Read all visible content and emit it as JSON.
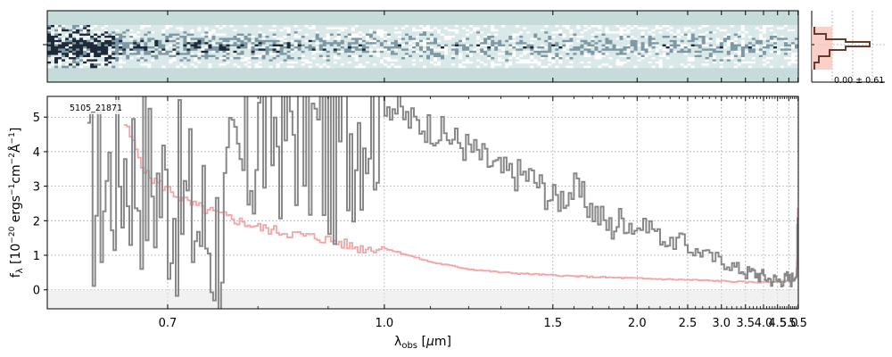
{
  "chart_data": {
    "type": "line",
    "object_id": "5105_21871",
    "xlabel": "λ_obs [μm]",
    "ylabel": "f_λ [10^−20 ergs^−1cm^−2Å^−1]",
    "x_scale": "reciprocal-like (dispersion axis)",
    "xlim": [
      0.6,
      5.52
    ],
    "ylim": [
      -0.55,
      5.6
    ],
    "x_ticks": [
      0.7,
      1.0,
      1.5,
      2.0,
      2.5,
      3.0,
      3.5,
      4.0,
      4.5,
      5.0,
      5.5
    ],
    "x_tick_labels": [
      "0.7",
      "1.0",
      "1.5",
      "2.0",
      "2.5",
      "3.0",
      "3.5",
      "4.0",
      "4.5",
      "5.0",
      "5.5"
    ],
    "y_ticks": [
      0,
      1,
      2,
      3,
      4,
      5
    ],
    "y_tick_labels": [
      "0",
      "1",
      "2",
      "3",
      "4",
      "5"
    ],
    "grid": true,
    "series": [
      {
        "color": "#888888",
        "style": "step",
        "x": [
          0.63,
          0.66,
          0.7,
          0.75,
          0.8,
          0.85,
          0.9,
          0.95,
          1.0,
          1.05,
          1.1,
          1.2,
          1.3,
          1.4,
          1.5,
          1.6,
          1.7,
          1.8,
          1.9,
          2.0,
          2.1,
          2.2,
          2.3,
          2.4,
          2.5,
          2.6,
          2.7,
          2.8,
          2.9,
          3.0,
          3.1,
          3.2,
          3.3,
          3.4,
          3.5,
          3.6,
          3.7,
          3.8,
          3.9,
          4.0,
          4.1,
          4.2,
          4.3,
          4.4,
          4.5,
          4.6,
          4.7,
          4.8,
          4.9,
          5.0,
          5.1,
          5.2,
          5.3,
          5.4,
          5.45,
          5.5
        ],
        "y": [
          2.5,
          3.8,
          2.8,
          1.5,
          4.6,
          5.0,
          3.9,
          5.2,
          5.5,
          4.9,
          4.7,
          4.1,
          3.4,
          3.3,
          2.6,
          2.9,
          2.3,
          1.8,
          2.1,
          1.8,
          1.9,
          1.5,
          1.3,
          1.5,
          1.2,
          1.1,
          1.1,
          0.9,
          0.9,
          0.8,
          0.8,
          0.7,
          0.6,
          0.6,
          0.5,
          0.5,
          0.5,
          0.45,
          0.4,
          0.4,
          0.35,
          0.3,
          0.3,
          0.3,
          0.25,
          0.3,
          0.3,
          0.3,
          0.35,
          0.3,
          0.3,
          0.35,
          0.45,
          0.7,
          1.2,
          2.1
        ]
      },
      {
        "color": "#f2a6a6",
        "style": "step",
        "x": [
          0.66,
          0.68,
          0.7,
          0.72,
          0.75,
          0.8,
          0.85,
          0.9,
          0.95,
          1.0,
          1.1,
          1.2,
          1.3,
          1.5,
          1.7,
          2.0,
          2.3,
          2.6,
          3.0,
          3.5,
          4.0,
          4.5,
          5.0,
          5.3,
          5.4,
          5.45,
          5.5
        ],
        "y": [
          4.8,
          3.3,
          2.9,
          2.5,
          2.2,
          1.8,
          1.6,
          1.45,
          1.2,
          1.2,
          0.8,
          0.6,
          0.5,
          0.42,
          0.37,
          0.33,
          0.3,
          0.28,
          0.25,
          0.22,
          0.22,
          0.24,
          0.26,
          0.3,
          0.45,
          1.2,
          3.5
        ]
      }
    ],
    "profile_panel": {
      "annotation": "0.00 ± 0.61"
    }
  },
  "colors": {
    "flux": "#888888",
    "error": "#f2a6a6",
    "spectrum_bg": "#c5dcdb",
    "profile": "#6b3a2f",
    "profile_fill": "#f8c9c0"
  }
}
